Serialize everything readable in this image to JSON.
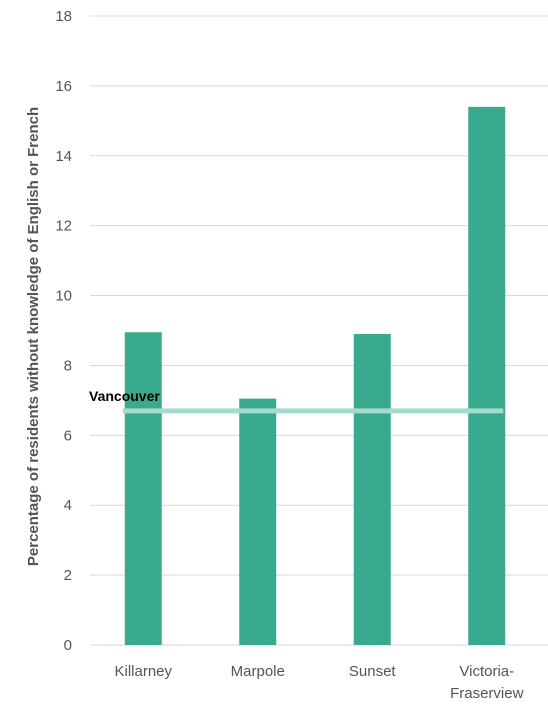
{
  "chart_data": {
    "type": "bar",
    "categories": [
      [
        "Killarney"
      ],
      [
        "Marpole"
      ],
      [
        "Sunset"
      ],
      [
        "Victoria-",
        "Fraserview"
      ]
    ],
    "values": [
      8.95,
      7.05,
      8.9,
      15.4
    ],
    "ylabel": "Percentage of residents without knowledge of English or French",
    "xlabel": "",
    "ylim": [
      0,
      18
    ],
    "yticks": [
      0,
      2,
      4,
      6,
      8,
      10,
      12,
      14,
      16,
      18
    ],
    "grid": true,
    "reference_line": {
      "label": "Vancouver",
      "value": 6.7
    },
    "colors": {
      "bar": "#3aaa8e",
      "reference_line": "#a6dccb",
      "grid": "#d9d9d9",
      "axis": "#d9d9d9"
    }
  }
}
